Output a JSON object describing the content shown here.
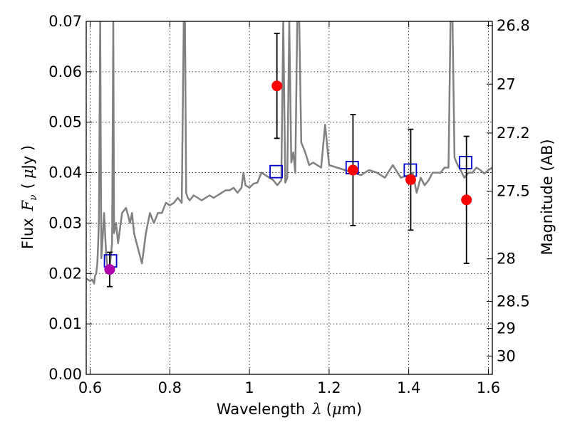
{
  "chart_data": {
    "type": "scatter",
    "title": "",
    "xlabel": "Wavelength",
    "xlabel_symbol": "λ",
    "xlabel_unit_open": "(",
    "xlabel_unit_mu": "μ",
    "xlabel_unit_rest": "m)",
    "ylabel": "Flux",
    "ylabel_symbol": "F",
    "ylabel_subscript": "ν",
    "ylabel_unit_open": "(",
    "ylabel_unit_mu": "μ",
    "ylabel_unit_rest": "Jy )",
    "y2label": "Magnitude (AB)",
    "xlim": [
      0.59,
      1.61
    ],
    "ylim": [
      0.0,
      0.07
    ],
    "xticks": [
      0.6,
      0.8,
      1.0,
      1.2,
      1.4,
      1.6
    ],
    "xtick_labels": [
      "0.6",
      "0.8",
      "1",
      "1.2",
      "1.4",
      "1.6"
    ],
    "yticks": [
      0.0,
      0.01,
      0.02,
      0.03,
      0.04,
      0.05,
      0.06,
      0.07
    ],
    "ytick_labels": [
      "0.00",
      "0.01",
      "0.02",
      "0.03",
      "0.04",
      "0.05",
      "0.06",
      "0.07"
    ],
    "y2ticks": [
      {
        "label": "26.8",
        "value": 26.8
      },
      {
        "label": "27",
        "value": 27.0
      },
      {
        "label": "27.2",
        "value": 27.2
      },
      {
        "label": "27.5",
        "value": 27.5
      },
      {
        "label": "28",
        "value": 28.0
      },
      {
        "label": "28.5",
        "value": 28.5
      },
      {
        "label": "29",
        "value": 29.0
      },
      {
        "label": "30",
        "value": 30.0
      }
    ],
    "grid": true,
    "colors": {
      "template": "#808080",
      "model": "#0000cc",
      "observed": "#ff0000",
      "observed_optical": "#b000b0",
      "errorbar": "#000000"
    },
    "template_spectrum": {
      "x": [
        0.59,
        0.6,
        0.605,
        0.61,
        0.612,
        0.615,
        0.618,
        0.62,
        0.622,
        0.625,
        0.628,
        0.632,
        0.635,
        0.64,
        0.645,
        0.65,
        0.655,
        0.658,
        0.66,
        0.665,
        0.67,
        0.68,
        0.69,
        0.7,
        0.705,
        0.71,
        0.72,
        0.73,
        0.74,
        0.75,
        0.76,
        0.77,
        0.78,
        0.79,
        0.8,
        0.81,
        0.82,
        0.83,
        0.835,
        0.838,
        0.841,
        0.845,
        0.85,
        0.86,
        0.87,
        0.88,
        0.89,
        0.9,
        0.91,
        0.92,
        0.93,
        0.94,
        0.95,
        0.96,
        0.97,
        0.98,
        0.985,
        0.99,
        1.0,
        1.01,
        1.02,
        1.03,
        1.04,
        1.05,
        1.06,
        1.07,
        1.08,
        1.085,
        1.09,
        1.095,
        1.1,
        1.105,
        1.11,
        1.115,
        1.12,
        1.125,
        1.13,
        1.14,
        1.15,
        1.16,
        1.17,
        1.18,
        1.19,
        1.2,
        1.22,
        1.24,
        1.26,
        1.28,
        1.3,
        1.32,
        1.34,
        1.36,
        1.38,
        1.4,
        1.41,
        1.42,
        1.43,
        1.44,
        1.45,
        1.46,
        1.47,
        1.48,
        1.49,
        1.5,
        1.505,
        1.51,
        1.515,
        1.52,
        1.53,
        1.54,
        1.55,
        1.56,
        1.57,
        1.58,
        1.59,
        1.6,
        1.61
      ],
      "y": [
        0.019,
        0.0185,
        0.0188,
        0.018,
        0.0195,
        0.02,
        0.022,
        0.026,
        0.031,
        0.07,
        0.023,
        0.028,
        0.032,
        0.024,
        0.02,
        0.022,
        0.026,
        0.07,
        0.028,
        0.03,
        0.026,
        0.032,
        0.033,
        0.03,
        0.032,
        0.028,
        0.025,
        0.022,
        0.028,
        0.032,
        0.03,
        0.032,
        0.032,
        0.034,
        0.0335,
        0.034,
        0.035,
        0.034,
        0.07,
        0.07,
        0.036,
        0.035,
        0.0345,
        0.0355,
        0.035,
        0.0345,
        0.035,
        0.0355,
        0.035,
        0.0355,
        0.036,
        0.0365,
        0.0365,
        0.037,
        0.036,
        0.037,
        0.04,
        0.0375,
        0.037,
        0.0378,
        0.038,
        0.04,
        0.0395,
        0.039,
        0.0385,
        0.0375,
        0.0385,
        0.07,
        0.038,
        0.039,
        0.07,
        0.042,
        0.044,
        0.04,
        0.07,
        0.07,
        0.046,
        0.044,
        0.0415,
        0.042,
        0.0415,
        0.041,
        0.0495,
        0.0415,
        0.041,
        0.0405,
        0.04,
        0.0395,
        0.0405,
        0.04,
        0.039,
        0.0415,
        0.039,
        0.0395,
        0.04,
        0.036,
        0.039,
        0.0375,
        0.0385,
        0.04,
        0.04,
        0.04,
        0.041,
        0.041,
        0.07,
        0.07,
        0.043,
        0.042,
        0.0405,
        0.039,
        0.04,
        0.04,
        0.041,
        0.0405,
        0.0398,
        0.0405,
        0.041
      ]
    },
    "model_points": {
      "x": [
        0.651,
        1.067,
        1.258,
        1.404,
        1.543
      ],
      "y": [
        0.0225,
        0.0402,
        0.041,
        0.0405,
        0.042
      ]
    },
    "observed_points": {
      "x": [
        0.649,
        1.069,
        1.26,
        1.405,
        1.545
      ],
      "y": [
        0.0208,
        0.0572,
        0.0405,
        0.0386,
        0.0346
      ],
      "yerr": [
        0.0034,
        0.0104,
        0.011,
        0.01,
        0.0126
      ],
      "colors": [
        "observed_optical",
        "observed",
        "observed",
        "observed",
        "observed"
      ]
    }
  }
}
